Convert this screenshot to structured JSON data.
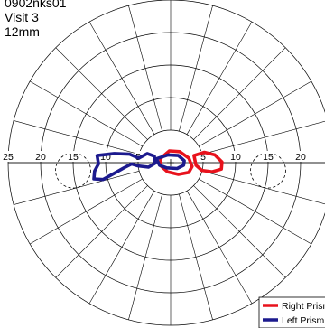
{
  "header": {
    "line1": "0902nks01",
    "line2": "Visit 3",
    "line3": "12mm"
  },
  "chart_data": {
    "type": "polar-field",
    "r_max": 25,
    "rings": [
      5,
      10,
      15,
      20,
      25
    ],
    "spoke_step_deg": 15,
    "tick_labels": [
      "25",
      "20",
      "15",
      "10",
      "5",
      "5",
      "10",
      "15",
      "20"
    ],
    "tick_values": [
      -25,
      -20,
      -15,
      -10,
      -5,
      5,
      10,
      15,
      20
    ],
    "blind_spot_rings": [
      {
        "cx": -15,
        "cy": -1.2,
        "r": 2.7
      },
      {
        "cx": 15,
        "cy": -1.2,
        "r": 2.7
      }
    ],
    "series": [
      {
        "name": "Right Prism",
        "color": "#e8121c",
        "points": [
          [
            -1.5,
            0.7
          ],
          [
            -0.2,
            1.8
          ],
          [
            1.4,
            1.7
          ],
          [
            2.8,
            0.7
          ],
          [
            3.3,
            -0.6
          ],
          [
            2.8,
            -1.5
          ],
          [
            1.2,
            -1.8
          ],
          [
            -0.5,
            -1.4
          ],
          [
            -1.6,
            -0.4
          ],
          [
            -1.5,
            0.7
          ]
        ]
      },
      {
        "name": "Right Prism",
        "color": "#e8121c",
        "points": [
          [
            3.6,
            1.1
          ],
          [
            5.2,
            1.6
          ],
          [
            6.8,
            1.2
          ],
          [
            7.9,
            0.1
          ],
          [
            7.8,
            -1.0
          ],
          [
            6.4,
            -1.4
          ],
          [
            4.8,
            -1.2
          ],
          [
            3.9,
            -0.4
          ],
          [
            3.6,
            1.1
          ]
        ]
      },
      {
        "name": "Left Prism",
        "color": "#1c1a8e",
        "points": [
          [
            -11.3,
            1.1
          ],
          [
            -8.7,
            1.4
          ],
          [
            -6.3,
            1.3
          ],
          [
            -4.9,
            0.7
          ],
          [
            -3.6,
            1.4
          ],
          [
            -2.5,
            1.0
          ],
          [
            -2.4,
            -0.1
          ],
          [
            -3.4,
            -0.7
          ],
          [
            -5.0,
            -0.5
          ],
          [
            -6.0,
            -0.2
          ],
          [
            -7.2,
            -0.8
          ],
          [
            -8.6,
            -1.6
          ],
          [
            -10.4,
            -2.6
          ],
          [
            -11.8,
            -2.5
          ],
          [
            -11.7,
            -1.3
          ],
          [
            -11.1,
            -0.2
          ],
          [
            -11.3,
            1.1
          ]
        ]
      },
      {
        "name": "Left Prism",
        "color": "#1c1a8e",
        "points": [
          [
            -2.2,
            0.6
          ],
          [
            -0.4,
            1.2
          ],
          [
            1.2,
            1.1
          ],
          [
            2.1,
            0.3
          ],
          [
            2.0,
            -0.4
          ],
          [
            1.0,
            -0.9
          ],
          [
            -0.6,
            -0.8
          ],
          [
            -1.7,
            -0.4
          ],
          [
            -2.2,
            0.6
          ]
        ]
      }
    ],
    "legend": [
      {
        "label": "Right Prism",
        "color": "#e8121c"
      },
      {
        "label": "Left Prism",
        "color": "#1c1a8e"
      }
    ],
    "legend_position": "bottom-right"
  }
}
